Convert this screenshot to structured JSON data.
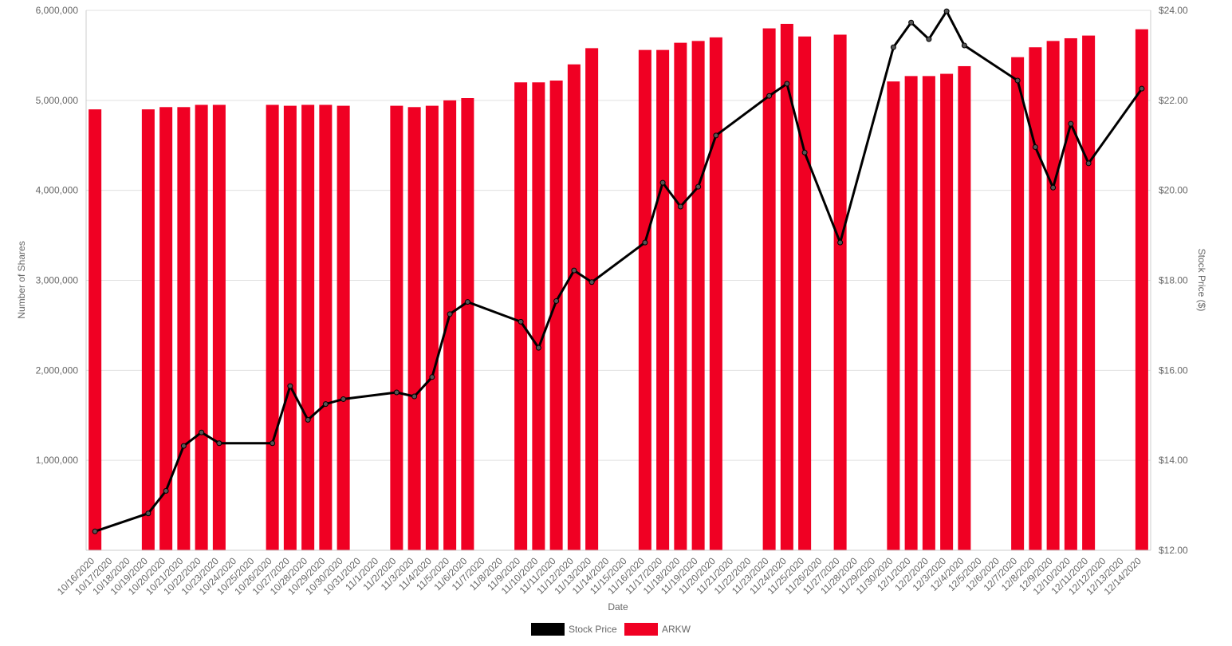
{
  "chart_data": {
    "type": "bar",
    "xlabel": "Date",
    "ylabel_left": "Number of Shares",
    "ylabel_right": "Stock Price ($)",
    "left_axis": {
      "range": [
        0,
        6000000
      ],
      "ticks": [
        1000000,
        2000000,
        3000000,
        4000000,
        5000000,
        6000000
      ],
      "tick_labels": [
        "1,000,000",
        "2,000,000",
        "3,000,000",
        "4,000,000",
        "5,000,000",
        "6,000,000"
      ]
    },
    "right_axis": {
      "range": [
        12,
        24
      ],
      "ticks": [
        12,
        14,
        16,
        18,
        20,
        22,
        24
      ],
      "tick_labels": [
        "$12.00",
        "$14.00",
        "$16.00",
        "$18.00",
        "$20.00",
        "$22.00",
        "$24.00"
      ]
    },
    "grid": true,
    "legend_position": "bottom",
    "categories": [
      "10/16/2020",
      "10/17/2020",
      "10/18/2020",
      "10/19/2020",
      "10/20/2020",
      "10/21/2020",
      "10/22/2020",
      "10/23/2020",
      "10/24/2020",
      "10/25/2020",
      "10/26/2020",
      "10/27/2020",
      "10/28/2020",
      "10/29/2020",
      "10/30/2020",
      "10/31/2020",
      "11/1/2020",
      "11/2/2020",
      "11/3/2020",
      "11/4/2020",
      "11/5/2020",
      "11/6/2020",
      "11/7/2020",
      "11/8/2020",
      "11/9/2020",
      "11/10/2020",
      "11/11/2020",
      "11/12/2020",
      "11/13/2020",
      "11/14/2020",
      "11/15/2020",
      "11/16/2020",
      "11/17/2020",
      "11/18/2020",
      "11/19/2020",
      "11/20/2020",
      "11/21/2020",
      "11/22/2020",
      "11/23/2020",
      "11/24/2020",
      "11/25/2020",
      "11/26/2020",
      "11/27/2020",
      "11/28/2020",
      "11/29/2020",
      "11/30/2020",
      "12/1/2020",
      "12/2/2020",
      "12/3/2020",
      "12/4/2020",
      "12/5/2020",
      "12/6/2020",
      "12/7/2020",
      "12/8/2020",
      "12/9/2020",
      "12/10/2020",
      "12/11/2020",
      "12/12/2020",
      "12/13/2020",
      "12/14/2020"
    ],
    "series": [
      {
        "name": "Stock Price",
        "type": "line",
        "axis": "right",
        "color": "#000000",
        "values": [
          12.42,
          null,
          null,
          12.82,
          13.32,
          14.32,
          14.62,
          14.38,
          null,
          null,
          14.38,
          15.65,
          14.9,
          15.25,
          15.36,
          null,
          null,
          15.51,
          15.42,
          15.85,
          17.25,
          17.52,
          null,
          null,
          17.08,
          16.5,
          17.54,
          18.22,
          17.96,
          null,
          null,
          18.84,
          20.17,
          19.64,
          20.08,
          21.22,
          null,
          null,
          22.1,
          22.37,
          20.84,
          null,
          18.84,
          null,
          null,
          23.18,
          23.73,
          23.36,
          23.98,
          23.22,
          null,
          null,
          22.44,
          20.96,
          20.06,
          21.48,
          20.6,
          null,
          null,
          22.26
        ]
      },
      {
        "name": "ARKW",
        "type": "bar",
        "axis": "left",
        "color": "#f00023",
        "values": [
          4900000,
          null,
          null,
          4900000,
          4925000,
          4925000,
          4950000,
          4950000,
          null,
          null,
          4950000,
          4940000,
          4950000,
          4950000,
          4940000,
          null,
          null,
          4940000,
          4925000,
          4940000,
          5000000,
          5025000,
          null,
          null,
          5200000,
          5200000,
          5220000,
          5400000,
          5580000,
          null,
          null,
          5560000,
          5560000,
          5640000,
          5660000,
          5700000,
          null,
          null,
          5800000,
          5850000,
          5710000,
          null,
          5730000,
          null,
          null,
          5210000,
          5270000,
          5270000,
          5295000,
          5380000,
          null,
          null,
          5480000,
          5590000,
          5660000,
          5690000,
          5720000,
          null,
          null,
          5790000
        ]
      }
    ]
  }
}
